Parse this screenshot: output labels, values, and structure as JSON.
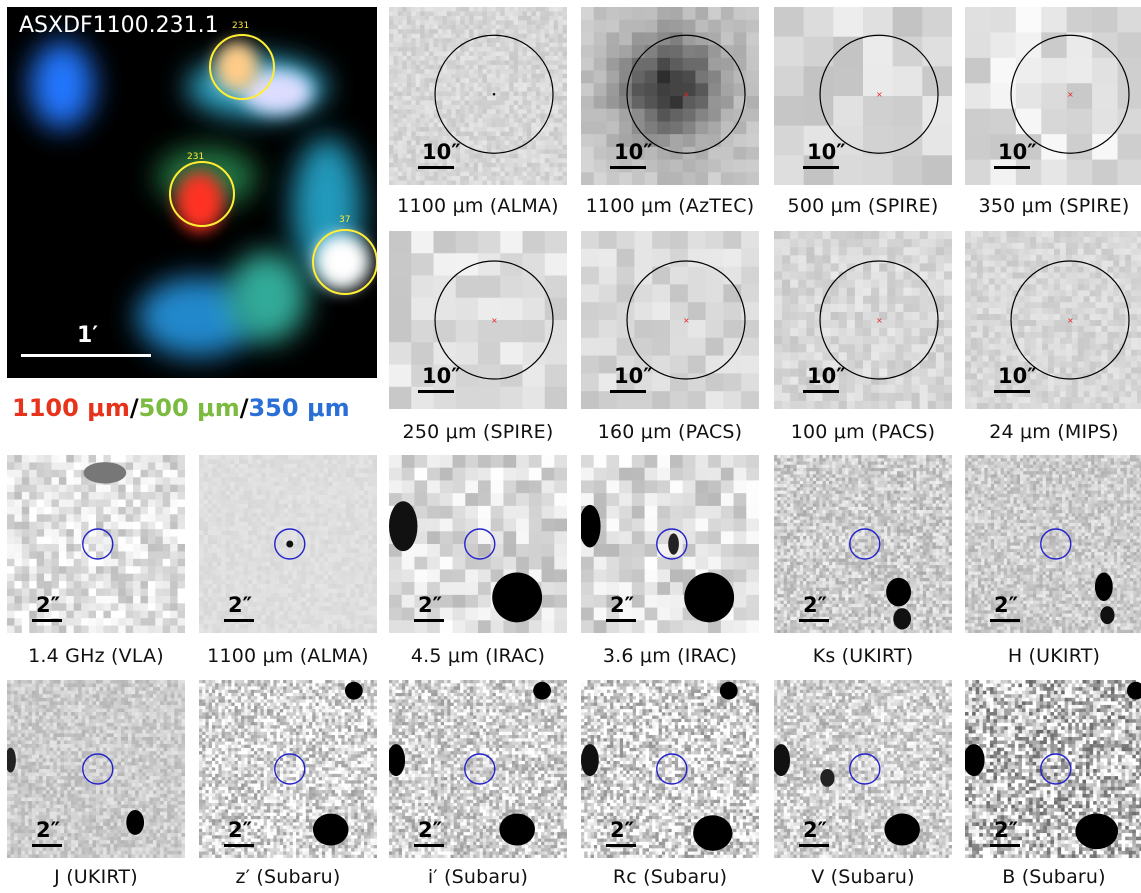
{
  "colors": {
    "red_band": "#e8331c",
    "green_band": "#7bbb3f",
    "blue_band": "#2a6fd6",
    "marker_circle_fir": "#000000",
    "marker_circle_optical": "#2222cc",
    "source_circle": "#ffee33"
  },
  "rgb_panel": {
    "title": "ASXDF1100.231.1",
    "scale_label": "1′",
    "sources": [
      "231",
      "37",
      "231"
    ]
  },
  "legend": {
    "red": "1100 μm",
    "sep1": "/",
    "green": "500 μm",
    "sep2": "/",
    "blue": "350 μm"
  },
  "row1": [
    {
      "caption": "1100 μm (ALMA)",
      "scale": "10″"
    },
    {
      "caption": "1100 μm (AzTEC)",
      "scale": "10″"
    },
    {
      "caption": "500 μm (SPIRE)",
      "scale": "10″"
    },
    {
      "caption": "350 μm (SPIRE)",
      "scale": "10″"
    }
  ],
  "row2": [
    {
      "caption": "250 μm (SPIRE)",
      "scale": "10″"
    },
    {
      "caption": "160 μm (PACS)",
      "scale": "10″"
    },
    {
      "caption": "100 μm (PACS)",
      "scale": "10″"
    },
    {
      "caption": "24 μm (MIPS)",
      "scale": "10″"
    }
  ],
  "row3": [
    {
      "caption": "1.4 GHz (VLA)",
      "scale": "2″"
    },
    {
      "caption": "1100 μm (ALMA)",
      "scale": "2″"
    },
    {
      "caption": "4.5 μm (IRAC)",
      "scale": "2″"
    },
    {
      "caption": "3.6 μm (IRAC)",
      "scale": "2″"
    },
    {
      "caption": "Ks (UKIRT)",
      "scale": "2″"
    },
    {
      "caption": "H (UKIRT)",
      "scale": "2″"
    }
  ],
  "row4": [
    {
      "caption": "J (UKIRT)",
      "scale": "2″"
    },
    {
      "caption": "z′ (Subaru)",
      "scale": "2″"
    },
    {
      "caption": "i′ (Subaru)",
      "scale": "2″"
    },
    {
      "caption": "Rc (Subaru)",
      "scale": "2″"
    },
    {
      "caption": "V (Subaru)",
      "scale": "2″"
    },
    {
      "caption": "B (Subaru)",
      "scale": "2″"
    }
  ]
}
